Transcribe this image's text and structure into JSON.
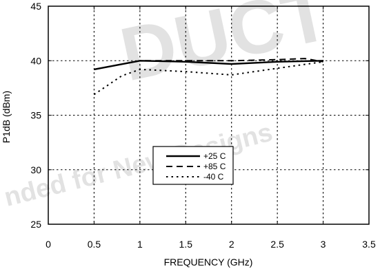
{
  "chart_data": {
    "type": "line",
    "title": "",
    "xlabel": "FREQUENCY (GHz)",
    "ylabel": "P1dB (dBm)",
    "xlim": [
      0,
      3.5
    ],
    "ylim": [
      25,
      45
    ],
    "x_ticks": [
      "0",
      "0.5",
      "1",
      "1.5",
      "2",
      "2.5",
      "3",
      "3.5"
    ],
    "y_ticks": [
      "25",
      "30",
      "35",
      "40",
      "45"
    ],
    "grid": true,
    "legend_position": "center",
    "series": [
      {
        "name": "+25 C",
        "style": "solid",
        "x": [
          0.5,
          1.0,
          1.5,
          2.0,
          2.5,
          3.0
        ],
        "y": [
          39.2,
          40.0,
          39.9,
          39.7,
          39.9,
          40.0
        ]
      },
      {
        "name": "+85 C",
        "style": "dashed",
        "x": [
          0.5,
          1.0,
          1.5,
          2.0,
          2.5,
          2.8,
          3.0
        ],
        "y": [
          39.2,
          40.0,
          40.0,
          40.0,
          40.1,
          40.2,
          39.9
        ]
      },
      {
        "name": "-40 C",
        "style": "dotted",
        "x": [
          0.5,
          0.8,
          1.0,
          1.5,
          2.0,
          2.5,
          3.0
        ],
        "y": [
          36.9,
          38.6,
          39.2,
          39.0,
          38.7,
          39.3,
          39.9
        ]
      }
    ]
  },
  "watermark": {
    "line1": "DUCT",
    "line2": "nded for New Designs"
  },
  "colors": {
    "line": "#000000",
    "watermark": "#e2e2e2"
  }
}
